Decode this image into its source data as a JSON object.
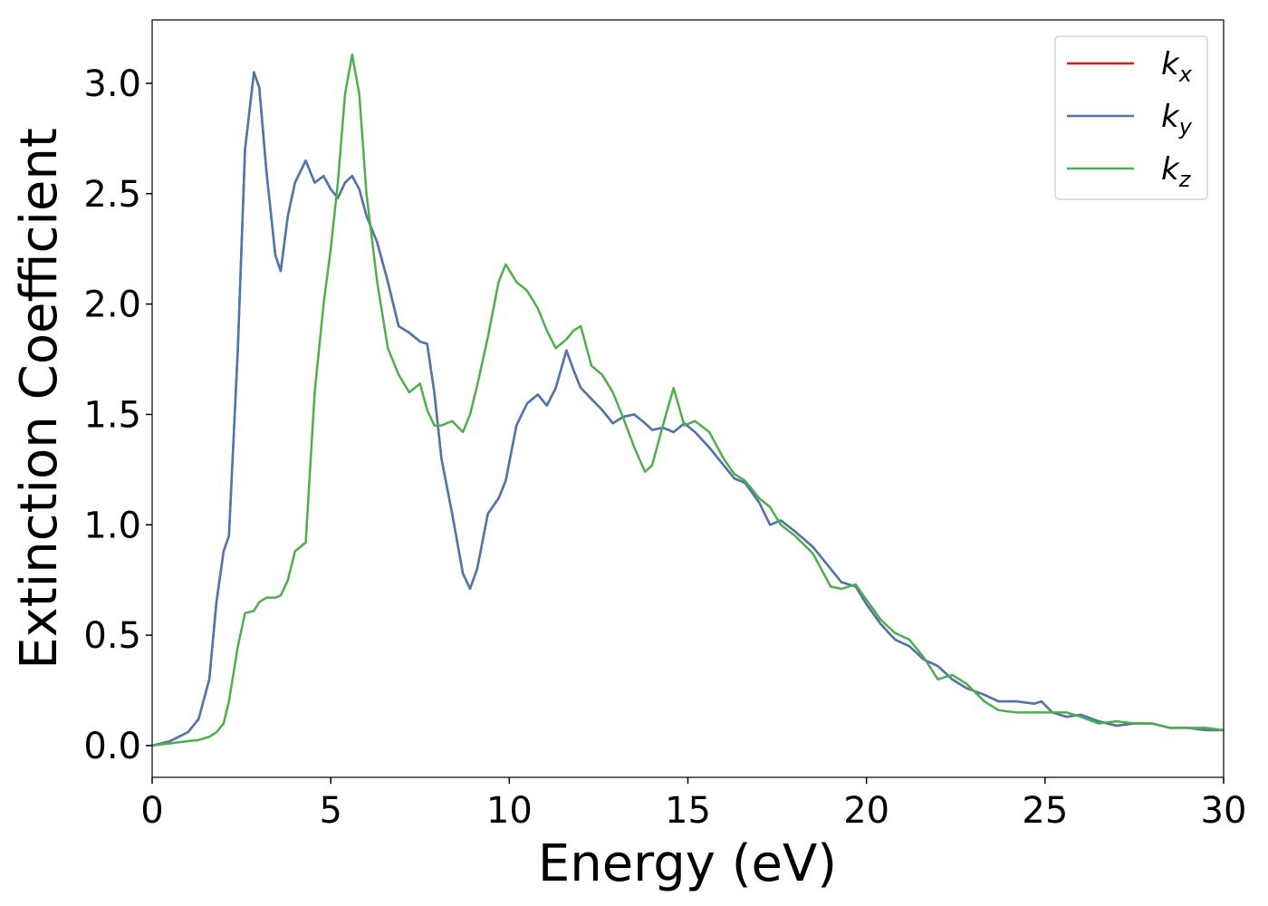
{
  "chart_data": {
    "type": "line",
    "x_label": "Energy (eV)",
    "y_label": "Extinction Coefficient",
    "xlim": [
      0,
      30
    ],
    "ylim": [
      -0.144,
      3.287
    ],
    "xticks": [
      0,
      5,
      10,
      15,
      20,
      25,
      30
    ],
    "yticks": [
      {
        "value": 0,
        "label": "0.0"
      },
      0.5,
      {
        "value": 1,
        "label": "1.0"
      },
      1.5,
      {
        "value": 2,
        "label": "2.0"
      },
      2.5,
      {
        "value": 3,
        "label": "3.0"
      }
    ],
    "grid": false,
    "legend": "upper right",
    "x": [
      0,
      0.5,
      1,
      1.3,
      1.6,
      1.8,
      2.0,
      2.15,
      2.4,
      2.6,
      2.85,
      3.0,
      3.2,
      3.45,
      3.6,
      3.8,
      4.0,
      4.3,
      4.55,
      4.8,
      5.0,
      5.2,
      5.4,
      5.6,
      5.8,
      6.0,
      6.3,
      6.6,
      6.9,
      7.2,
      7.5,
      7.7,
      7.9,
      8.1,
      8.4,
      8.7,
      8.9,
      9.1,
      9.4,
      9.7,
      9.9,
      10.2,
      10.5,
      10.8,
      11.05,
      11.3,
      11.6,
      11.8,
      12.0,
      12.3,
      12.6,
      12.9,
      13.2,
      13.5,
      13.8,
      14.0,
      14.3,
      14.6,
      14.9,
      15.2,
      15.6,
      16.0,
      16.3,
      16.6,
      17.0,
      17.3,
      17.6,
      18.0,
      18.5,
      19.0,
      19.3,
      19.7,
      20.0,
      20.4,
      20.8,
      21.2,
      21.6,
      22.0,
      22.4,
      22.8,
      23.3,
      23.7,
      24.2,
      24.7,
      24.9,
      25.2,
      25.6,
      26.0,
      26.5,
      27.0,
      27.5,
      28.0,
      28.5,
      29.0,
      29.5,
      30
    ],
    "series": [
      {
        "name": "kx",
        "color": "#e41a1c",
        "values": [
          0,
          0.02,
          0.06,
          0.12,
          0.3,
          0.65,
          0.88,
          0.95,
          1.8,
          2.7,
          3.05,
          2.98,
          2.6,
          2.22,
          2.15,
          2.4,
          2.55,
          2.65,
          2.55,
          2.58,
          2.52,
          2.48,
          2.55,
          2.58,
          2.52,
          2.4,
          2.28,
          2.1,
          1.9,
          1.87,
          1.83,
          1.82,
          1.6,
          1.3,
          1.05,
          0.78,
          0.71,
          0.8,
          1.05,
          1.12,
          1.2,
          1.45,
          1.55,
          1.59,
          1.54,
          1.62,
          1.79,
          1.7,
          1.62,
          1.57,
          1.52,
          1.46,
          1.49,
          1.5,
          1.46,
          1.43,
          1.44,
          1.42,
          1.46,
          1.42,
          1.35,
          1.27,
          1.21,
          1.19,
          1.1,
          1.0,
          1.02,
          0.97,
          0.9,
          0.8,
          0.74,
          0.72,
          0.64,
          0.55,
          0.48,
          0.45,
          0.39,
          0.36,
          0.3,
          0.26,
          0.23,
          0.2,
          0.2,
          0.19,
          0.2,
          0.15,
          0.13,
          0.14,
          0.11,
          0.09,
          0.1,
          0.1,
          0.08,
          0.08,
          0.07,
          0.07
        ]
      },
      {
        "name": "ky",
        "color": "#4a78b0",
        "values": [
          0,
          0.02,
          0.06,
          0.12,
          0.3,
          0.65,
          0.88,
          0.95,
          1.8,
          2.7,
          3.05,
          2.98,
          2.6,
          2.22,
          2.15,
          2.4,
          2.55,
          2.65,
          2.55,
          2.58,
          2.52,
          2.48,
          2.55,
          2.58,
          2.52,
          2.4,
          2.28,
          2.1,
          1.9,
          1.87,
          1.83,
          1.82,
          1.6,
          1.3,
          1.05,
          0.78,
          0.71,
          0.8,
          1.05,
          1.12,
          1.2,
          1.45,
          1.55,
          1.59,
          1.54,
          1.62,
          1.79,
          1.7,
          1.62,
          1.57,
          1.52,
          1.46,
          1.49,
          1.5,
          1.46,
          1.43,
          1.44,
          1.42,
          1.46,
          1.42,
          1.35,
          1.27,
          1.21,
          1.19,
          1.1,
          1.0,
          1.02,
          0.97,
          0.9,
          0.8,
          0.74,
          0.72,
          0.64,
          0.55,
          0.48,
          0.45,
          0.39,
          0.36,
          0.3,
          0.26,
          0.23,
          0.2,
          0.2,
          0.19,
          0.2,
          0.15,
          0.13,
          0.14,
          0.11,
          0.09,
          0.1,
          0.1,
          0.08,
          0.08,
          0.07,
          0.07
        ]
      },
      {
        "name": "kz",
        "color": "#4daf4a",
        "values": [
          0,
          0.01,
          0.02,
          0.025,
          0.04,
          0.06,
          0.1,
          0.2,
          0.45,
          0.6,
          0.61,
          0.65,
          0.67,
          0.67,
          0.68,
          0.75,
          0.88,
          0.92,
          1.6,
          2.0,
          2.25,
          2.55,
          2.95,
          3.13,
          2.95,
          2.5,
          2.1,
          1.8,
          1.68,
          1.6,
          1.64,
          1.52,
          1.45,
          1.45,
          1.47,
          1.42,
          1.5,
          1.63,
          1.85,
          2.1,
          2.18,
          2.1,
          2.06,
          1.98,
          1.88,
          1.8,
          1.84,
          1.88,
          1.9,
          1.72,
          1.68,
          1.6,
          1.48,
          1.35,
          1.24,
          1.27,
          1.45,
          1.62,
          1.45,
          1.47,
          1.42,
          1.3,
          1.23,
          1.2,
          1.12,
          1.08,
          1.0,
          0.95,
          0.87,
          0.72,
          0.71,
          0.73,
          0.66,
          0.57,
          0.51,
          0.48,
          0.4,
          0.3,
          0.32,
          0.28,
          0.2,
          0.16,
          0.15,
          0.15,
          0.15,
          0.15,
          0.15,
          0.13,
          0.1,
          0.11,
          0.1,
          0.1,
          0.08,
          0.08,
          0.08,
          0.07
        ]
      }
    ]
  }
}
